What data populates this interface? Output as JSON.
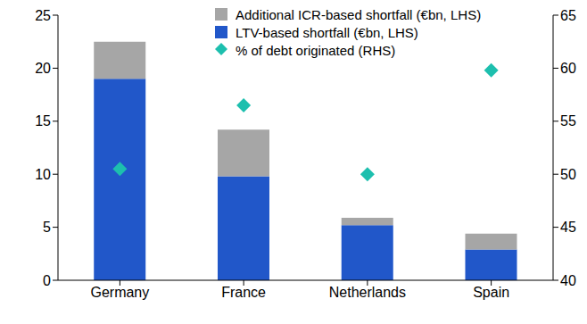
{
  "chart_data": {
    "type": "bar",
    "stacked": true,
    "categories": [
      "Germany",
      "France",
      "Netherlands",
      "Spain"
    ],
    "series": [
      {
        "name": "Additional ICR-based shortfall (€bn, LHS)",
        "type": "bar",
        "color": "#a6a6a6",
        "values": [
          3.5,
          4.4,
          0.7,
          1.5
        ]
      },
      {
        "name": "LTV-based shortfall (€bn, LHS)",
        "type": "bar",
        "color": "#2157c9",
        "values": [
          19,
          9.8,
          5.2,
          2.9
        ]
      },
      {
        "name": "% of debt originated (RHS)",
        "type": "scatter",
        "axis": "y2",
        "color": "#1dbfae",
        "marker": "diamond",
        "values": [
          50.5,
          56.5,
          50,
          59.8
        ]
      }
    ],
    "ylim": [
      0,
      25
    ],
    "yticks": [
      0,
      5,
      10,
      15,
      20,
      25
    ],
    "y2lim": [
      40,
      65
    ],
    "y2ticks": [
      40,
      45,
      50,
      55,
      60,
      65
    ],
    "grid": false,
    "legend": "top"
  }
}
